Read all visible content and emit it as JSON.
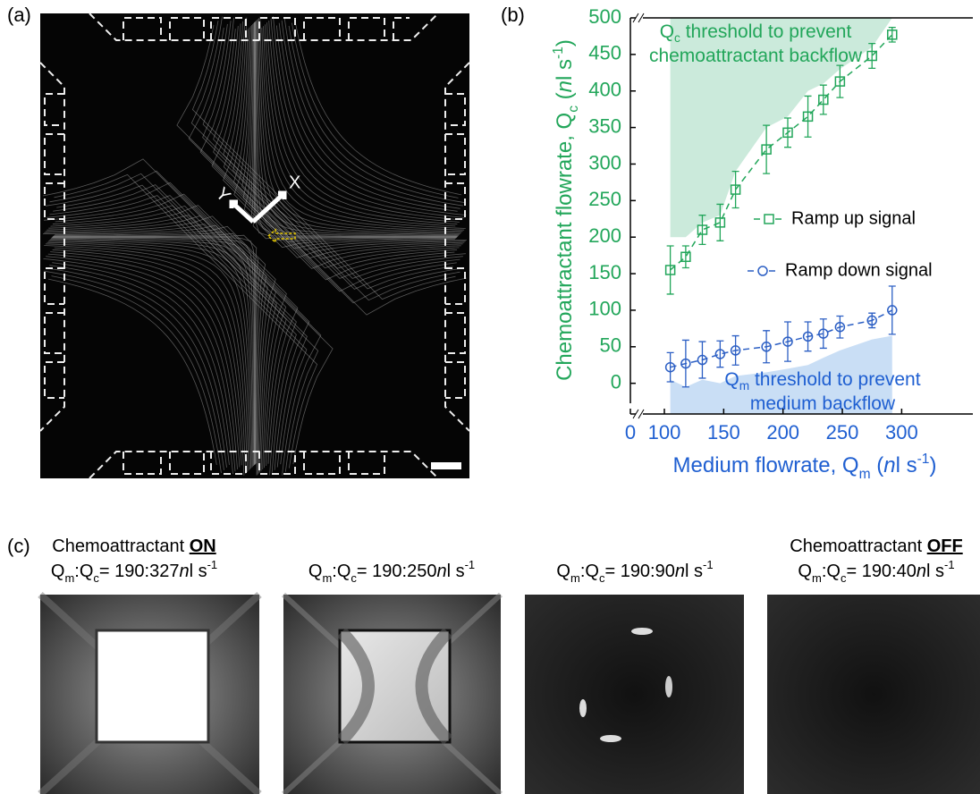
{
  "panels": {
    "a": {
      "label": "(a)",
      "axis_x": "X",
      "axis_y": "Y"
    },
    "b": {
      "label": "(b)"
    },
    "c": {
      "label": "(c)",
      "images": [
        {
          "heading": [
            {
              "t": "Chemoattractant "
            },
            {
              "t": "ON",
              "u": true
            }
          ],
          "ratio": [
            {
              "t": "Q"
            },
            {
              "t": "m",
              "sub": true
            },
            {
              "t": ":Q"
            },
            {
              "t": "c",
              "sub": true
            },
            {
              "t": "= 190:327"
            },
            {
              "t": "n",
              "i": true
            },
            {
              "t": "l s"
            },
            {
              "t": "-1",
              "sup": true
            }
          ]
        },
        {
          "ratio": [
            {
              "t": "Q"
            },
            {
              "t": "m",
              "sub": true
            },
            {
              "t": ":Q"
            },
            {
              "t": "c",
              "sub": true
            },
            {
              "t": "= 190:250"
            },
            {
              "t": "n",
              "i": true
            },
            {
              "t": "l s"
            },
            {
              "t": "-1",
              "sup": true
            }
          ]
        },
        {
          "ratio": [
            {
              "t": "Q"
            },
            {
              "t": "m",
              "sub": true
            },
            {
              "t": ":Q"
            },
            {
              "t": "c",
              "sub": true
            },
            {
              "t": "= 190:90"
            },
            {
              "t": "n",
              "i": true
            },
            {
              "t": "l s"
            },
            {
              "t": "-1",
              "sup": true
            }
          ]
        },
        {
          "heading": [
            {
              "t": "Chemoattractant "
            },
            {
              "t": "OFF",
              "u": true
            }
          ],
          "ratio": [
            {
              "t": "Q"
            },
            {
              "t": "m",
              "sub": true
            },
            {
              "t": ":Q"
            },
            {
              "t": "c",
              "sub": true
            },
            {
              "t": "= 190:40"
            },
            {
              "t": "n",
              "i": true
            },
            {
              "t": "l s"
            },
            {
              "t": "-1",
              "sup": true
            }
          ]
        }
      ]
    }
  },
  "chart_data": {
    "type": "scatter",
    "x_label": [
      {
        "t": "Medium flowrate, Q"
      },
      {
        "t": "m",
        "sub": true
      },
      {
        "t": " ("
      },
      {
        "t": "n",
        "i": true
      },
      {
        "t": "l s"
      },
      {
        "t": "-1",
        "sup": true
      },
      {
        "t": ")"
      }
    ],
    "y_label": [
      {
        "t": "Chemoattractant flowrate, Q"
      },
      {
        "t": "c",
        "sub": true
      },
      {
        "t": " ("
      },
      {
        "t": "n",
        "i": true
      },
      {
        "t": "l s"
      },
      {
        "t": "-1",
        "sup": true
      },
      {
        "t": ")"
      }
    ],
    "xlim": [
      0,
      360
    ],
    "x_break": [
      0,
      100
    ],
    "xticks": [
      0,
      100,
      150,
      200,
      250,
      300
    ],
    "ylim": [
      -42,
      500
    ],
    "yticks": [
      0,
      50,
      100,
      150,
      200,
      250,
      300,
      350,
      400,
      450,
      500
    ],
    "xtick_color": "#1f5fd1",
    "ytick_color": "#22a65a",
    "legend": "center-right",
    "series": [
      {
        "name": "Ramp up signal",
        "color": "#22a65a",
        "marker": "square",
        "x": [
          105,
          118,
          132,
          147,
          160,
          186,
          204,
          221,
          234,
          248,
          275,
          292
        ],
        "values": [
          155,
          173,
          210,
          220,
          265,
          320,
          343,
          365,
          388,
          413,
          448,
          477
        ],
        "errors": [
          33,
          15,
          20,
          25,
          25,
          33,
          20,
          28,
          20,
          22,
          17,
          10
        ]
      },
      {
        "name": "Ramp down signal",
        "color": "#2c5fc4",
        "marker": "circle",
        "x": [
          105,
          118,
          132,
          147,
          160,
          186,
          204,
          221,
          234,
          248,
          275,
          292
        ],
        "values": [
          22,
          27,
          32,
          40,
          45,
          50,
          57,
          64,
          68,
          77,
          86,
          100
        ],
        "errors": [
          20,
          32,
          25,
          18,
          20,
          22,
          27,
          20,
          20,
          15,
          10,
          33
        ]
      }
    ],
    "regions": [
      {
        "bound": "top",
        "color": "#cbeadb",
        "x": [
          105,
          118,
          132,
          147,
          160,
          186,
          204,
          221,
          234,
          248,
          275,
          292
        ],
        "lower": [
          200,
          200,
          220,
          230,
          290,
          350,
          365,
          400,
          410,
          430,
          460,
          500
        ],
        "label": [
          [
            {
              "t": "Q"
            },
            {
              "t": "c",
              "sub": true
            },
            {
              "t": " threshold to prevent"
            }
          ],
          [
            {
              "t": "chemoattractant backflow"
            }
          ]
        ],
        "label_color": "#22a65a"
      },
      {
        "bound": "bottom",
        "color": "#c9def5",
        "x": [
          105,
          118,
          132,
          147,
          160,
          186,
          204,
          221,
          234,
          248,
          275,
          292
        ],
        "upper": [
          5,
          -5,
          5,
          0,
          10,
          15,
          20,
          25,
          35,
          45,
          60,
          65
        ],
        "label": [
          [
            {
              "t": "Q"
            },
            {
              "t": "m",
              "sub": true
            },
            {
              "t": " threshold to prevent"
            }
          ],
          [
            {
              "t": "medium backflow"
            }
          ]
        ],
        "label_color": "#1f5fd1"
      }
    ]
  }
}
